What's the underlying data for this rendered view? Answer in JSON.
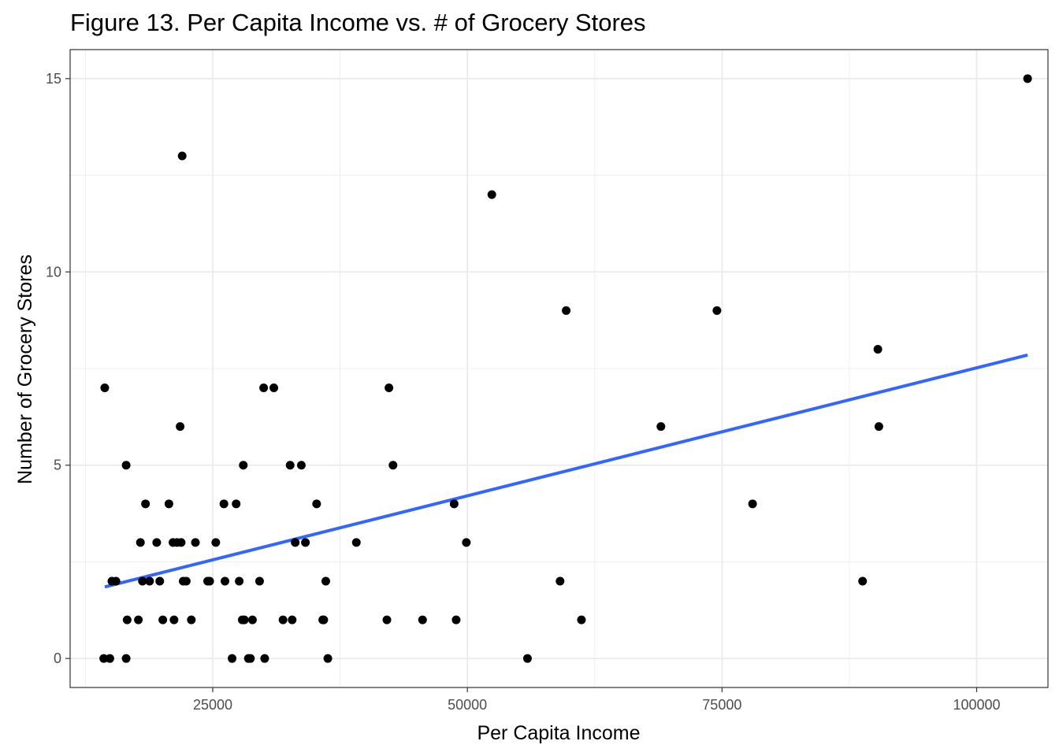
{
  "chart_data": {
    "type": "scatter",
    "title": "Figure 13. Per Capita Income vs. # of Grocery Stores",
    "xlabel": "Per Capita Income",
    "ylabel": "Number of Grocery Stores",
    "xlim": [
      11000,
      107000
    ],
    "ylim": [
      -0.75,
      15.75
    ],
    "xticks": [
      25000,
      50000,
      75000,
      100000
    ],
    "xtick_labels": [
      "25000",
      "50000",
      "75000",
      "100000"
    ],
    "yticks": [
      0,
      5,
      10,
      15
    ],
    "ytick_labels": [
      "0",
      "5",
      "10",
      "15"
    ],
    "grid": true,
    "colors": {
      "points": "#000000",
      "trend": "#3366ff",
      "grid": "#ebebeb",
      "panel_border": "#333333"
    },
    "points": [
      {
        "x": 14400,
        "y": 7
      },
      {
        "x": 14300,
        "y": 0
      },
      {
        "x": 14900,
        "y": 0
      },
      {
        "x": 15100,
        "y": 2
      },
      {
        "x": 15500,
        "y": 2
      },
      {
        "x": 16500,
        "y": 5
      },
      {
        "x": 16600,
        "y": 1
      },
      {
        "x": 16500,
        "y": 0
      },
      {
        "x": 17700,
        "y": 1
      },
      {
        "x": 17900,
        "y": 3
      },
      {
        "x": 18100,
        "y": 2
      },
      {
        "x": 18400,
        "y": 4
      },
      {
        "x": 18800,
        "y": 2
      },
      {
        "x": 19500,
        "y": 3
      },
      {
        "x": 19800,
        "y": 2
      },
      {
        "x": 20100,
        "y": 1
      },
      {
        "x": 20700,
        "y": 4
      },
      {
        "x": 21100,
        "y": 3
      },
      {
        "x": 21200,
        "y": 1
      },
      {
        "x": 21500,
        "y": 3
      },
      {
        "x": 21800,
        "y": 6
      },
      {
        "x": 21900,
        "y": 3
      },
      {
        "x": 22000,
        "y": 13
      },
      {
        "x": 22100,
        "y": 2
      },
      {
        "x": 22400,
        "y": 2
      },
      {
        "x": 22900,
        "y": 1
      },
      {
        "x": 23300,
        "y": 3
      },
      {
        "x": 24500,
        "y": 2
      },
      {
        "x": 24700,
        "y": 2
      },
      {
        "x": 25300,
        "y": 3
      },
      {
        "x": 26100,
        "y": 4
      },
      {
        "x": 26200,
        "y": 2
      },
      {
        "x": 26900,
        "y": 0
      },
      {
        "x": 27300,
        "y": 4
      },
      {
        "x": 27600,
        "y": 2
      },
      {
        "x": 27900,
        "y": 1
      },
      {
        "x": 28000,
        "y": 5
      },
      {
        "x": 28100,
        "y": 1
      },
      {
        "x": 28500,
        "y": 0
      },
      {
        "x": 28700,
        "y": 0
      },
      {
        "x": 28900,
        "y": 1
      },
      {
        "x": 29600,
        "y": 2
      },
      {
        "x": 30000,
        "y": 7
      },
      {
        "x": 30100,
        "y": 0
      },
      {
        "x": 31000,
        "y": 7
      },
      {
        "x": 31900,
        "y": 1
      },
      {
        "x": 32600,
        "y": 5
      },
      {
        "x": 32800,
        "y": 1
      },
      {
        "x": 33100,
        "y": 3
      },
      {
        "x": 33700,
        "y": 5
      },
      {
        "x": 34100,
        "y": 3
      },
      {
        "x": 35200,
        "y": 4
      },
      {
        "x": 35800,
        "y": 1
      },
      {
        "x": 35900,
        "y": 1
      },
      {
        "x": 36100,
        "y": 2
      },
      {
        "x": 36300,
        "y": 0
      },
      {
        "x": 39100,
        "y": 3
      },
      {
        "x": 42100,
        "y": 1
      },
      {
        "x": 42300,
        "y": 7
      },
      {
        "x": 42700,
        "y": 5
      },
      {
        "x": 45600,
        "y": 1
      },
      {
        "x": 48700,
        "y": 4
      },
      {
        "x": 48900,
        "y": 1
      },
      {
        "x": 49900,
        "y": 3
      },
      {
        "x": 52400,
        "y": 12
      },
      {
        "x": 55900,
        "y": 0
      },
      {
        "x": 59100,
        "y": 2
      },
      {
        "x": 59700,
        "y": 9
      },
      {
        "x": 61200,
        "y": 1
      },
      {
        "x": 69000,
        "y": 6
      },
      {
        "x": 74500,
        "y": 9
      },
      {
        "x": 78000,
        "y": 4
      },
      {
        "x": 88800,
        "y": 2
      },
      {
        "x": 90300,
        "y": 8
      },
      {
        "x": 90400,
        "y": 6
      },
      {
        "x": 105000,
        "y": 15
      }
    ],
    "trend_line": {
      "x": [
        14400,
        105000
      ],
      "y": [
        1.85,
        7.85
      ]
    }
  }
}
